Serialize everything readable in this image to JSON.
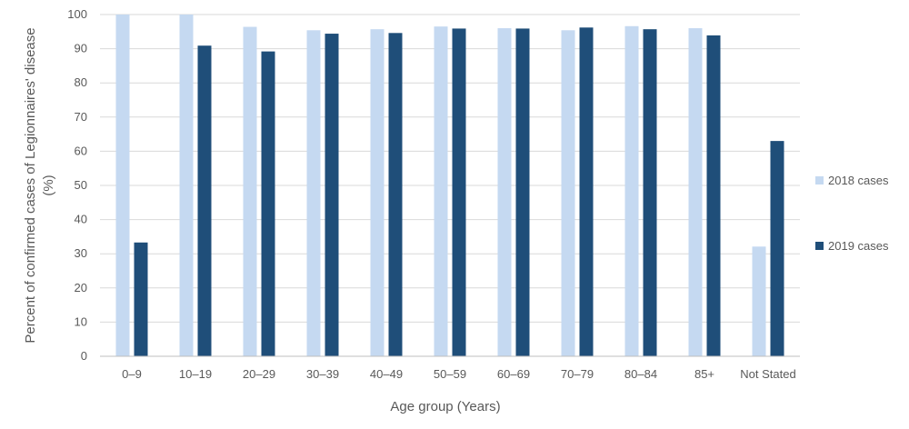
{
  "chart_data": {
    "type": "bar",
    "title": "",
    "xlabel": "Age group (Years)",
    "ylabel_line1": "Percent of confirmed cases of Legionnaires' disease",
    "ylabel_line2": "(%)",
    "ylim": [
      0,
      100
    ],
    "yticks": [
      "0",
      "10",
      "20",
      "30",
      "40",
      "50",
      "60",
      "70",
      "80",
      "90",
      "100"
    ],
    "grid": true,
    "legend_position": "right",
    "categories": [
      "0–9",
      "10–19",
      "20–29",
      "30–39",
      "40–49",
      "50–59",
      "60–69",
      "70–79",
      "80–84",
      "85+",
      "Not Stated"
    ],
    "series": [
      {
        "name": "2018 cases",
        "color": "#c5d9f1",
        "values": [
          100,
          100,
          96.4,
          95.4,
          95.7,
          96.5,
          96.0,
          95.4,
          96.6,
          96.0,
          32.1
        ]
      },
      {
        "name": "2019 cases",
        "color": "#1f4e79",
        "values": [
          33.3,
          90.9,
          89.2,
          94.4,
          94.6,
          95.9,
          95.9,
          96.2,
          95.7,
          93.9,
          63.0
        ]
      }
    ]
  }
}
